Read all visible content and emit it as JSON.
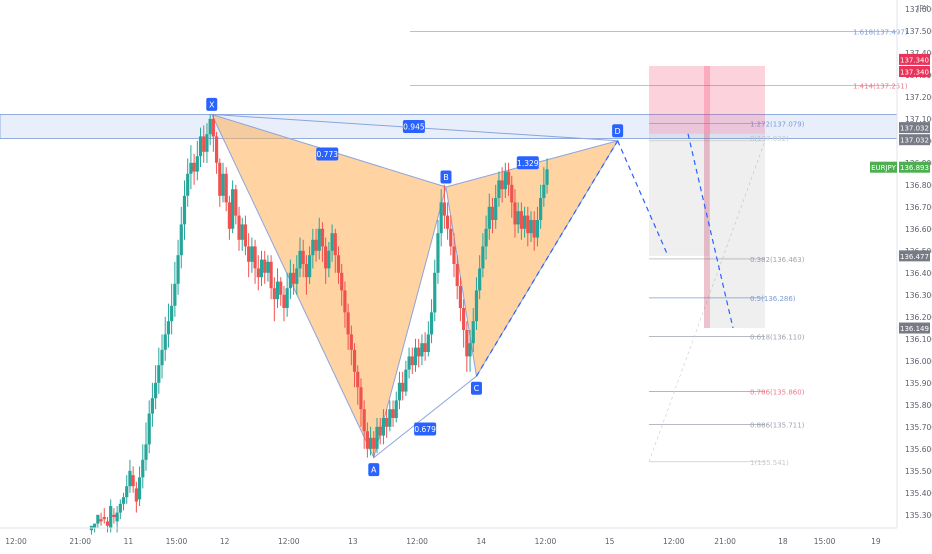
{
  "chart_data": {
    "type": "candlestick",
    "currency_label": "JPY",
    "y_range": [
      135.24,
      137.64
    ],
    "x_range": [
      0,
      26
    ],
    "x_ticks": [
      {
        "pos": 0.5,
        "label": "12:00"
      },
      {
        "pos": 2.5,
        "label": "21:00"
      },
      {
        "pos": 4,
        "label": "11"
      },
      {
        "pos": 5.5,
        "label": "15:00"
      },
      {
        "pos": 7,
        "label": "12"
      },
      {
        "pos": 9,
        "label": "12:00"
      },
      {
        "pos": 11,
        "label": "13"
      },
      {
        "pos": 13,
        "label": "12:00"
      },
      {
        "pos": 15,
        "label": "14"
      },
      {
        "pos": 17,
        "label": "12:00"
      },
      {
        "pos": 19,
        "label": "15"
      },
      {
        "pos": 21,
        "label": "12:00"
      },
      {
        "pos": 22.6,
        "label": "21:00"
      },
      {
        "pos": 24.4,
        "label": "18"
      },
      {
        "pos": 25.7,
        "label": "15:00"
      },
      {
        "pos": 27.3,
        "label": "19"
      }
    ],
    "y_ticks": [
      "137.600",
      "137.500",
      "137.400",
      "137.300",
      "137.200",
      "137.100",
      "137.000",
      "136.900",
      "136.800",
      "136.700",
      "136.600",
      "136.500",
      "136.400",
      "136.300",
      "136.200",
      "136.100",
      "136.000",
      "135.900",
      "135.800",
      "135.700",
      "135.600",
      "135.500",
      "135.400",
      "135.300"
    ],
    "price_badges": [
      {
        "label": "137.340",
        "value": 137.37,
        "color": "#e8335a"
      },
      {
        "label": "137.340",
        "value": 137.315,
        "color": "#e8335a"
      },
      {
        "label": "137.032",
        "value": 137.06,
        "color": "#787b86"
      },
      {
        "label": "137.032",
        "value": 137.005,
        "color": "#787b86"
      },
      {
        "label": "EURJPY",
        "value": 136.88,
        "color": "#4caf50"
      },
      {
        "label": "136.893",
        "value": 136.88,
        "color": "#4caf50"
      },
      {
        "label": "136.477",
        "value": 136.477,
        "color": "#787b86"
      },
      {
        "label": "136.149",
        "value": 136.149,
        "color": "#787b86"
      }
    ],
    "pattern_points": [
      {
        "label": "X",
        "x": 6.6,
        "y": 137.12
      },
      {
        "label": "A",
        "x": 11.65,
        "y": 135.56
      },
      {
        "label": "B",
        "x": 13.9,
        "y": 136.79
      },
      {
        "label": "C",
        "x": 14.85,
        "y": 135.93
      },
      {
        "label": "D",
        "x": 19.25,
        "y": 137.0
      }
    ],
    "ratios": [
      {
        "label": "0.773",
        "x": 10.2,
        "y": 136.94
      },
      {
        "label": "0.945",
        "x": 12.9,
        "y": 137.065
      },
      {
        "label": "1.329",
        "x": 16.45,
        "y": 136.9
      },
      {
        "label": "0.679",
        "x": 13.25,
        "y": 135.69
      }
    ],
    "fib_levels": [
      {
        "label": "1.618(137.497)",
        "value": 137.497,
        "color": "#7c9cd6"
      },
      {
        "label": "1.414(137.251)",
        "value": 137.251,
        "color": "#e87b8f"
      },
      {
        "label": "1.272(137.079)",
        "value": 137.079,
        "color": "#7c9cd6"
      },
      {
        "label": "0.382(136.463)",
        "value": 136.463,
        "color": "#9ea3ad"
      },
      {
        "label": "0.5(136.286)",
        "value": 136.286,
        "color": "#7c9cd6"
      },
      {
        "label": "0.618(136.110)",
        "value": 136.11,
        "color": "#9ea3ad"
      },
      {
        "label": "0.786(135.860)",
        "value": 135.86,
        "color": "#e87b8f"
      },
      {
        "label": "0.886(135.711)",
        "value": 135.711,
        "color": "#9ea3ad"
      },
      {
        "label": "1(135.541)",
        "value": 135.541,
        "color": "#c7cad1"
      }
    ],
    "zero_level_label": "0(137.032)",
    "candles": [
      [
        2.85,
        135.23,
        135.25,
        135.21,
        135.24
      ],
      [
        2.95,
        135.24,
        135.26,
        135.22,
        135.25
      ],
      [
        3.05,
        135.26,
        135.3,
        135.24,
        135.28
      ],
      [
        3.15,
        135.28,
        135.27,
        135.25,
        135.31
      ],
      [
        3.25,
        135.29,
        135.28,
        135.26,
        135.33
      ],
      [
        3.35,
        135.27,
        135.25,
        135.22,
        135.29
      ],
      [
        3.45,
        135.24,
        135.34,
        135.22,
        135.37
      ],
      [
        3.55,
        135.3,
        135.29,
        135.26,
        135.33
      ],
      [
        3.65,
        135.27,
        135.31,
        135.22,
        135.34
      ],
      [
        3.75,
        135.31,
        135.35,
        135.28,
        135.37
      ],
      [
        3.85,
        135.35,
        135.38,
        135.32,
        135.4
      ],
      [
        3.95,
        135.38,
        135.43,
        135.35,
        135.48
      ],
      [
        4.05,
        135.43,
        135.5,
        135.4,
        135.55
      ],
      [
        4.15,
        135.48,
        135.43,
        135.4,
        135.52
      ],
      [
        4.25,
        135.42,
        135.36,
        135.31,
        135.45
      ],
      [
        4.35,
        135.37,
        135.47,
        135.34,
        135.52
      ],
      [
        4.45,
        135.47,
        135.55,
        135.42,
        135.62
      ],
      [
        4.55,
        135.55,
        135.62,
        135.5,
        135.72
      ],
      [
        4.65,
        135.62,
        135.76,
        135.58,
        135.82
      ],
      [
        4.75,
        135.76,
        135.83,
        135.7,
        135.9
      ],
      [
        4.85,
        135.83,
        135.9,
        135.78,
        135.98
      ],
      [
        4.95,
        135.9,
        135.98,
        135.85,
        136.06
      ],
      [
        5.05,
        135.98,
        136.05,
        135.92,
        136.12
      ],
      [
        5.15,
        136.05,
        136.12,
        136.0,
        136.2
      ],
      [
        5.25,
        136.12,
        136.18,
        136.06,
        136.26
      ],
      [
        5.35,
        136.18,
        136.25,
        136.12,
        136.35
      ],
      [
        5.45,
        136.25,
        136.35,
        136.2,
        136.45
      ],
      [
        5.55,
        136.35,
        136.48,
        136.3,
        136.55
      ],
      [
        5.65,
        136.48,
        136.62,
        136.42,
        136.7
      ],
      [
        5.75,
        136.62,
        136.75,
        136.55,
        136.82
      ],
      [
        5.85,
        136.75,
        136.85,
        136.7,
        136.92
      ],
      [
        5.95,
        136.85,
        136.9,
        136.78,
        136.98
      ],
      [
        6.05,
        136.9,
        136.86,
        136.8,
        136.94
      ],
      [
        6.15,
        136.86,
        136.93,
        136.82,
        137.0
      ],
      [
        6.25,
        136.93,
        137.02,
        136.88,
        137.06
      ],
      [
        6.35,
        137.02,
        136.95,
        136.9,
        137.07
      ],
      [
        6.45,
        136.95,
        137.03,
        136.9,
        137.08
      ],
      [
        6.55,
        137.03,
        137.1,
        136.98,
        137.12
      ],
      [
        6.65,
        137.1,
        137.02,
        136.95,
        137.12
      ],
      [
        6.75,
        137.02,
        136.9,
        136.85,
        137.04
      ],
      [
        6.85,
        136.9,
        136.75,
        136.7,
        136.92
      ],
      [
        6.95,
        136.75,
        136.85,
        136.72,
        136.9
      ],
      [
        7.05,
        136.85,
        136.72,
        136.68,
        136.88
      ],
      [
        7.15,
        136.72,
        136.6,
        136.55,
        136.75
      ],
      [
        7.25,
        136.6,
        136.78,
        136.58,
        136.82
      ],
      [
        7.35,
        136.78,
        136.66,
        136.62,
        136.8
      ],
      [
        7.45,
        136.66,
        136.55,
        136.5,
        136.7
      ],
      [
        7.55,
        136.55,
        136.62,
        136.5,
        136.65
      ],
      [
        7.65,
        136.62,
        136.52,
        136.48,
        136.66
      ],
      [
        7.75,
        136.52,
        136.45,
        136.38,
        136.58
      ],
      [
        7.85,
        136.45,
        136.52,
        136.4,
        136.56
      ],
      [
        7.95,
        136.52,
        136.42,
        136.35,
        136.55
      ],
      [
        8.05,
        136.42,
        136.38,
        136.32,
        136.48
      ],
      [
        8.15,
        136.38,
        136.46,
        136.34,
        136.5
      ],
      [
        8.25,
        136.46,
        136.4,
        136.35,
        136.5
      ],
      [
        8.35,
        136.4,
        136.45,
        136.36,
        136.48
      ],
      [
        8.45,
        136.45,
        136.33,
        136.28,
        136.48
      ],
      [
        8.55,
        136.33,
        136.28,
        136.18,
        136.38
      ],
      [
        8.65,
        136.28,
        136.36,
        136.24,
        136.42
      ],
      [
        8.75,
        136.36,
        136.3,
        136.25,
        136.38
      ],
      [
        8.85,
        136.3,
        136.24,
        136.18,
        136.34
      ],
      [
        8.95,
        136.24,
        136.33,
        136.2,
        136.4
      ],
      [
        9.05,
        136.33,
        136.4,
        136.28,
        136.46
      ],
      [
        9.15,
        136.4,
        136.35,
        136.3,
        136.44
      ],
      [
        9.25,
        136.35,
        136.42,
        136.3,
        136.48
      ],
      [
        9.35,
        136.42,
        136.5,
        136.38,
        136.56
      ],
      [
        9.45,
        136.5,
        136.44,
        136.38,
        136.55
      ],
      [
        9.55,
        136.44,
        136.38,
        136.3,
        136.48
      ],
      [
        9.65,
        136.38,
        136.48,
        136.35,
        136.52
      ],
      [
        9.75,
        136.48,
        136.55,
        136.42,
        136.6
      ],
      [
        9.85,
        136.55,
        136.5,
        136.45,
        136.6
      ],
      [
        9.95,
        136.5,
        136.6,
        136.46,
        136.65
      ],
      [
        10.05,
        136.6,
        136.52,
        136.45,
        136.63
      ],
      [
        10.15,
        136.52,
        136.42,
        136.35,
        136.56
      ],
      [
        10.25,
        136.42,
        136.5,
        136.38,
        136.54
      ],
      [
        10.35,
        136.5,
        136.58,
        136.45,
        136.62
      ],
      [
        10.45,
        136.58,
        136.48,
        136.4,
        136.6
      ],
      [
        10.55,
        136.48,
        136.4,
        136.35,
        136.52
      ],
      [
        10.65,
        136.4,
        136.32,
        136.25,
        136.44
      ],
      [
        10.75,
        136.32,
        136.22,
        136.15,
        136.36
      ],
      [
        10.85,
        136.22,
        136.12,
        136.05,
        136.26
      ],
      [
        10.95,
        136.12,
        136.05,
        135.98,
        136.16
      ],
      [
        11.05,
        136.05,
        135.95,
        135.88,
        136.08
      ],
      [
        11.15,
        135.95,
        135.88,
        135.8,
        135.98
      ],
      [
        11.25,
        135.88,
        135.78,
        135.7,
        135.92
      ],
      [
        11.35,
        135.78,
        135.68,
        135.6,
        135.82
      ],
      [
        11.45,
        135.68,
        135.6,
        135.56,
        135.72
      ],
      [
        11.55,
        135.6,
        135.65,
        135.57,
        135.7
      ],
      [
        11.65,
        135.65,
        135.6,
        135.56,
        135.68
      ],
      [
        11.75,
        135.6,
        135.7,
        135.58,
        135.74
      ],
      [
        11.85,
        135.7,
        135.66,
        135.62,
        135.74
      ],
      [
        11.95,
        135.66,
        135.74,
        135.62,
        135.78
      ],
      [
        12.05,
        135.74,
        135.7,
        135.65,
        135.78
      ],
      [
        12.15,
        135.7,
        135.78,
        135.68,
        135.82
      ],
      [
        12.25,
        135.78,
        135.74,
        135.7,
        135.82
      ],
      [
        12.35,
        135.74,
        135.82,
        135.72,
        135.86
      ],
      [
        12.45,
        135.82,
        135.9,
        135.78,
        135.95
      ],
      [
        12.55,
        135.9,
        135.86,
        135.82,
        135.95
      ],
      [
        12.65,
        135.86,
        135.96,
        135.84,
        136.0
      ],
      [
        12.75,
        135.96,
        136.02,
        135.92,
        136.06
      ],
      [
        12.85,
        136.02,
        135.98,
        135.94,
        136.06
      ],
      [
        12.95,
        135.98,
        136.06,
        135.95,
        136.1
      ],
      [
        13.05,
        136.06,
        136.02,
        135.97,
        136.1
      ],
      [
        13.15,
        136.02,
        136.08,
        135.98,
        136.12
      ],
      [
        13.25,
        136.08,
        136.04,
        136.0,
        136.13
      ],
      [
        13.35,
        136.04,
        136.12,
        136.02,
        136.18
      ],
      [
        13.45,
        136.12,
        136.22,
        136.08,
        136.28
      ],
      [
        13.55,
        136.22,
        136.4,
        136.18,
        136.46
      ],
      [
        13.65,
        136.4,
        136.58,
        136.35,
        136.64
      ],
      [
        13.75,
        136.58,
        136.72,
        136.52,
        136.78
      ],
      [
        13.85,
        136.72,
        136.66,
        136.6,
        136.8
      ],
      [
        13.95,
        136.66,
        136.6,
        136.55,
        136.72
      ],
      [
        14.05,
        136.6,
        136.52,
        136.48,
        136.66
      ],
      [
        14.15,
        136.52,
        136.44,
        136.38,
        136.58
      ],
      [
        14.25,
        136.44,
        136.34,
        136.28,
        136.48
      ],
      [
        14.35,
        136.34,
        136.24,
        136.18,
        136.38
      ],
      [
        14.45,
        136.24,
        136.14,
        136.06,
        136.28
      ],
      [
        14.55,
        136.14,
        136.02,
        135.95,
        136.18
      ],
      [
        14.65,
        136.02,
        136.08,
        135.95,
        136.14
      ],
      [
        14.75,
        136.08,
        136.18,
        136.04,
        136.24
      ],
      [
        14.85,
        136.18,
        136.32,
        136.14,
        136.38
      ],
      [
        14.95,
        136.32,
        136.42,
        136.28,
        136.48
      ],
      [
        15.05,
        136.42,
        136.52,
        136.38,
        136.58
      ],
      [
        15.15,
        136.52,
        136.6,
        136.46,
        136.66
      ],
      [
        15.25,
        136.6,
        136.7,
        136.55,
        136.76
      ],
      [
        15.35,
        136.7,
        136.64,
        136.58,
        136.74
      ],
      [
        15.45,
        136.64,
        136.74,
        136.6,
        136.8
      ],
      [
        15.55,
        136.74,
        136.82,
        136.7,
        136.86
      ],
      [
        15.65,
        136.82,
        136.78,
        136.72,
        136.88
      ],
      [
        15.75,
        136.78,
        136.86,
        136.74,
        136.9
      ],
      [
        15.85,
        136.86,
        136.8,
        136.75,
        136.9
      ],
      [
        15.95,
        136.8,
        136.72,
        136.65,
        136.84
      ],
      [
        16.05,
        136.72,
        136.62,
        136.56,
        136.78
      ],
      [
        16.15,
        136.62,
        136.68,
        136.58,
        136.72
      ],
      [
        16.25,
        136.68,
        136.6,
        136.55,
        136.72
      ],
      [
        16.35,
        136.6,
        136.66,
        136.56,
        136.7
      ],
      [
        16.45,
        136.66,
        136.58,
        136.52,
        136.7
      ],
      [
        16.55,
        136.58,
        136.64,
        136.54,
        136.68
      ],
      [
        16.65,
        136.64,
        136.56,
        136.5,
        136.68
      ],
      [
        16.75,
        136.56,
        136.64,
        136.52,
        136.7
      ],
      [
        16.85,
        136.64,
        136.74,
        136.6,
        136.8
      ],
      [
        16.95,
        136.74,
        136.8,
        136.7,
        136.88
      ],
      [
        17.05,
        136.8,
        136.87,
        136.76,
        136.92
      ]
    ]
  }
}
